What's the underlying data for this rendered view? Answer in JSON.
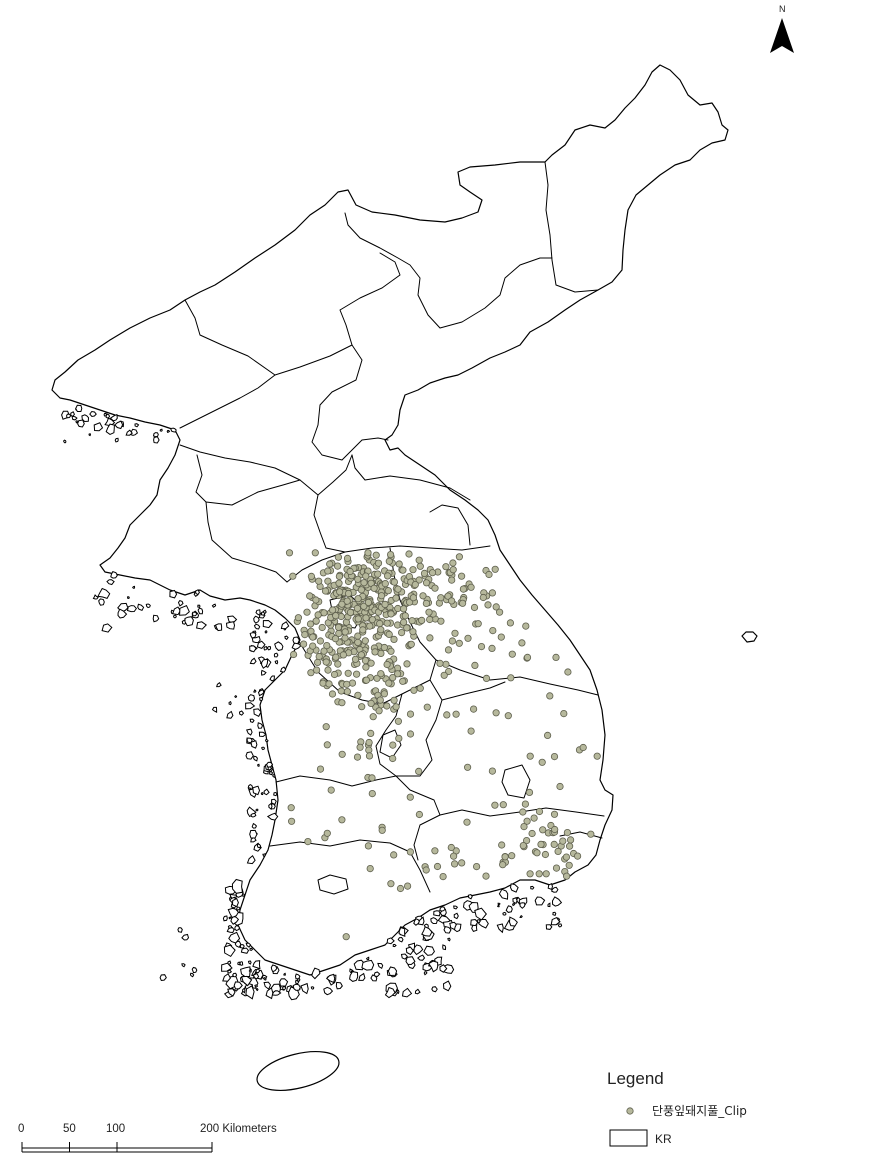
{
  "north_arrow": {
    "label": "N",
    "icon": "north-arrow-icon"
  },
  "legend": {
    "title": "Legend",
    "items": [
      {
        "label": "단풍잎돼지풀_Clip",
        "icon": "point-symbol-icon"
      },
      {
        "label": "KR",
        "icon": "polygon-symbol-icon"
      }
    ]
  },
  "scale_bar": {
    "ticks_km": [
      0,
      50,
      100,
      200
    ],
    "labels": [
      "0",
      "50",
      "100",
      "200 Kilometers"
    ]
  },
  "colors": {
    "background": "#ffffff",
    "boundary": "#000000",
    "point_fill": "#b6b89c",
    "point_stroke": "#5f604e"
  }
}
